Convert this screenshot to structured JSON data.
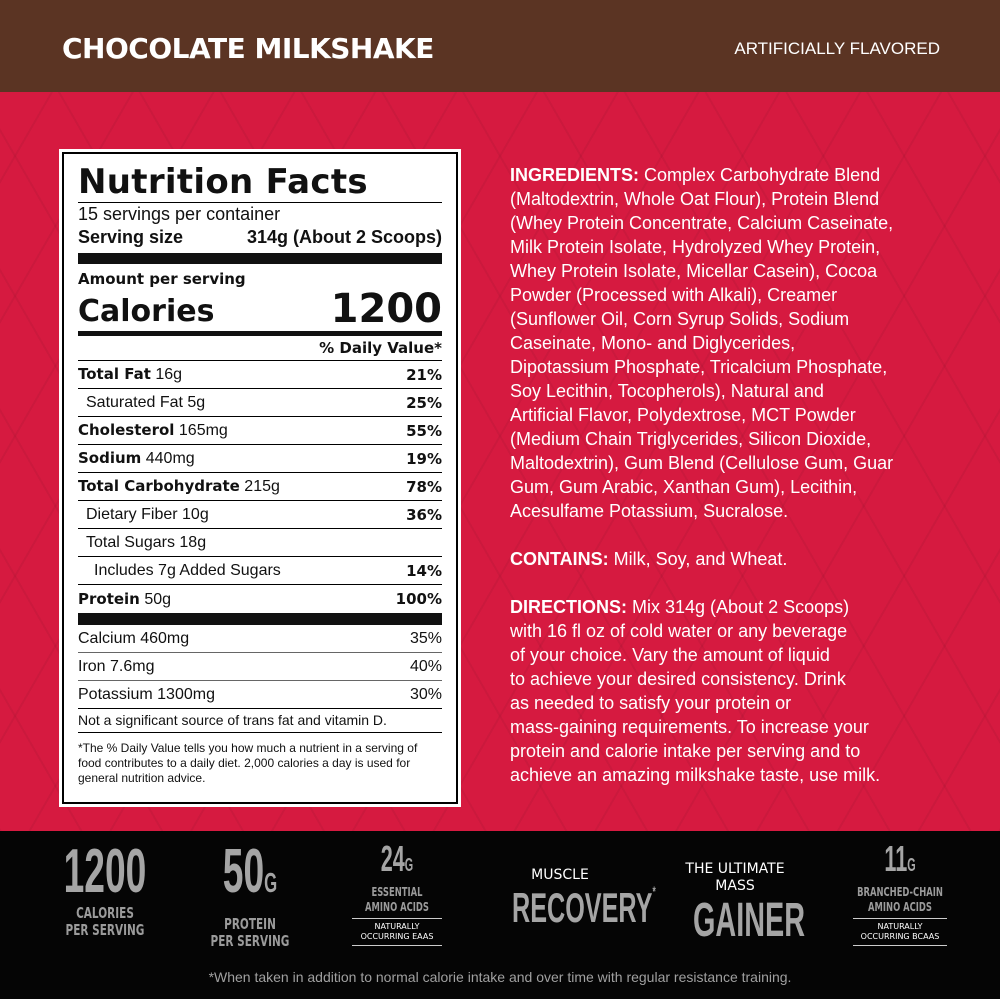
{
  "header": {
    "title": "CHOCOLATE MILKSHAKE",
    "flavor_note": "ARTIFICIALLY FLAVORED"
  },
  "nutrition": {
    "title": "Nutrition Facts",
    "servings": "15 servings per container",
    "serving_size_label": "Serving size",
    "serving_size_value": "314g (About 2 Scoops)",
    "amount_per_serving": "Amount per serving",
    "calories_label": "Calories",
    "calories_value": "1200",
    "dv_header": "% Daily Value*",
    "rows": [
      {
        "label": "Total Fat",
        "amount": "16g",
        "dv": "21%"
      },
      {
        "label": "Saturated Fat",
        "amount": "5g",
        "dv": "25%"
      },
      {
        "label": "Cholesterol",
        "amount": "165mg",
        "dv": "55%"
      },
      {
        "label": "Sodium",
        "amount": "440mg",
        "dv": "19%"
      },
      {
        "label": "Total Carbohydrate",
        "amount": "215g",
        "dv": "78%"
      },
      {
        "label": "Dietary Fiber",
        "amount": "10g",
        "dv": "36%"
      },
      {
        "label": "Total Sugars",
        "amount": "18g",
        "dv": ""
      },
      {
        "label": "Includes 7g Added Sugars",
        "amount": "",
        "dv": "14%"
      },
      {
        "label": "Protein",
        "amount": "50g",
        "dv": "100%"
      }
    ],
    "minerals": [
      {
        "label": "Calcium 460mg",
        "dv": "35%"
      },
      {
        "label": "Iron 7.6mg",
        "dv": "40%"
      },
      {
        "label": "Potassium 1300mg",
        "dv": "30%"
      }
    ],
    "note": "Not a significant source of trans fat and vitamin D.",
    "footnote": "*The % Daily Value tells you how much a nutrient in a serving of food contributes to a daily diet. 2,000 calories a day is used for general nutrition advice."
  },
  "ingredients": {
    "label": "INGREDIENTS:",
    "lines": [
      " Complex Carbohydrate Blend",
      "(Maltodextrin, Whole Oat Flour), Protein Blend",
      "(Whey Protein Concentrate, Calcium Caseinate,",
      "Milk Protein Isolate, Hydrolyzed Whey Protein,",
      "Whey Protein Isolate, Micellar Casein), Cocoa",
      "Powder (Processed with Alkali), Creamer",
      "(Sunflower Oil, Corn Syrup Solids, Sodium",
      "Caseinate, Mono- and Diglycerides,",
      "Dipotassium Phosphate, Tricalcium Phosphate,",
      "Soy Lecithin, Tocopherols), Natural and",
      "Artificial Flavor, Polydextrose, MCT Powder",
      "(Medium Chain Triglycerides, Silicon Dioxide,",
      "Maltodextrin), Gum Blend (Cellulose Gum, Guar",
      "Gum, Gum Arabic, Xanthan Gum), Lecithin,",
      "Acesulfame Potassium, Sucralose."
    ]
  },
  "contains": {
    "label": "CONTAINS:",
    "text": " Milk, Soy, and Wheat."
  },
  "directions": {
    "label": "DIRECTIONS:",
    "lines": [
      " Mix 314g (About 2 Scoops)",
      "with 16 fl oz of cold water or any beverage",
      "of your choice. Vary the amount of liquid",
      "to achieve your desired consistency. Drink",
      "as needed to satisfy your protein or",
      "mass-gaining requirements. To increase your",
      "protein and calorie intake per serving and to",
      "achieve an amazing milkshake taste, use milk."
    ]
  },
  "badges": {
    "calories": {
      "value": "1200",
      "l1": "CALORIES",
      "l2": "PER SERVING"
    },
    "protein": {
      "value": "50",
      "unit": "G",
      "l1": "PROTEIN",
      "l2": "PER SERVING"
    },
    "eaas": {
      "value": "24",
      "unit": "G",
      "l1": "ESSENTIAL",
      "l2": "AMINO ACIDS",
      "box1": "NATURALLY",
      "box2": "OCCURRING EAAS"
    },
    "recovery": {
      "top": "MUSCLE",
      "main": "RECOVERY",
      "mark": "*"
    },
    "gainer": {
      "l1": "THE ULTIMATE",
      "l2": "MASS",
      "main": "GAINER"
    },
    "bcaas": {
      "value": "11",
      "unit": "G",
      "l1": "BRANCHED-CHAIN",
      "l2": "AMINO ACIDS",
      "box1": "NATURALLY",
      "box2": "OCCURRING BCAAS"
    },
    "disclaimer": "*When taken in addition to normal calorie intake and over time with regular resistance training."
  },
  "colors": {
    "header": "#5b3423",
    "panel": "#d61a40",
    "footer": "#050505"
  }
}
